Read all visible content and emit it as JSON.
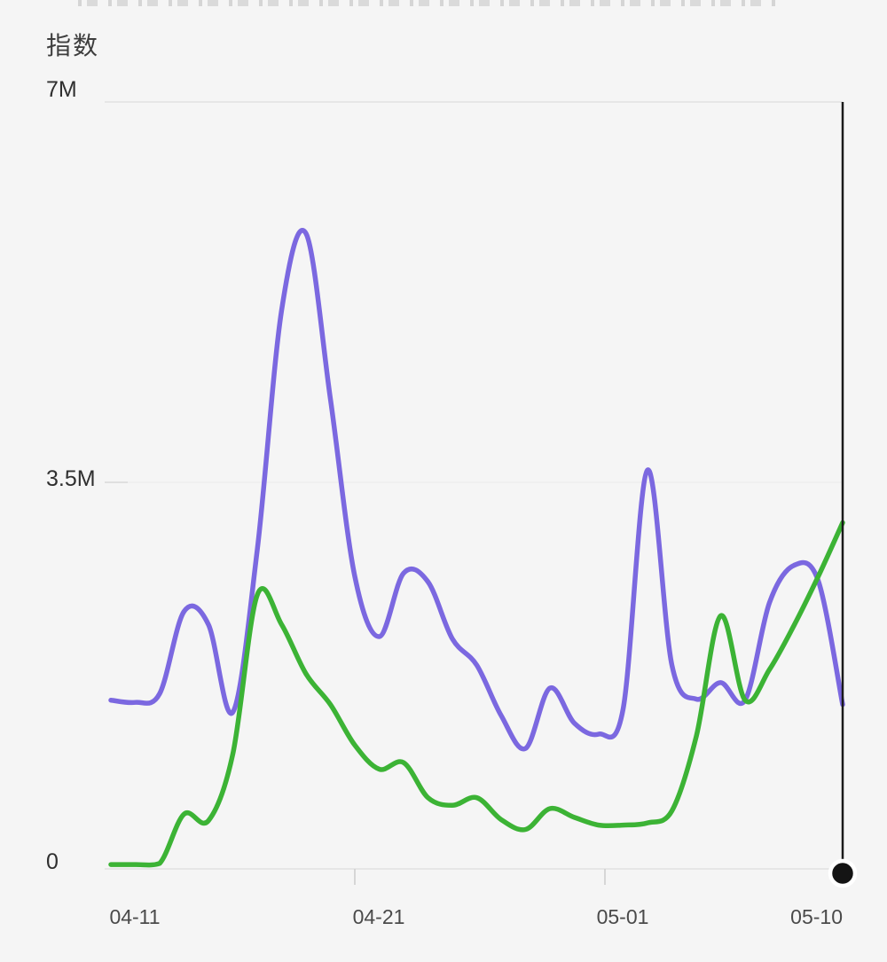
{
  "page": {
    "background": "#f5f5f5"
  },
  "chart_data": {
    "type": "line",
    "title": "指数",
    "y_ticks": [
      "7M",
      "3.5M",
      "0"
    ],
    "ylim_m": [
      0,
      7
    ],
    "grid": "horizontal-only",
    "legend": "none",
    "x_tick_labels": [
      "04-11",
      "04-21",
      "05-01",
      "05-10"
    ],
    "x_dates": [
      "04-10",
      "04-11",
      "04-12",
      "04-13",
      "04-14",
      "04-15",
      "04-16",
      "04-17",
      "04-18",
      "04-19",
      "04-20",
      "04-21",
      "04-22",
      "04-23",
      "04-24",
      "04-25",
      "04-26",
      "04-27",
      "04-28",
      "04-29",
      "04-30",
      "05-01",
      "05-02",
      "05-03",
      "05-04",
      "05-05",
      "05-06",
      "05-07",
      "05-08",
      "05-09",
      "05-10"
    ],
    "series": [
      {
        "id": "purple",
        "name": "series-purple",
        "color": "#7b68e0",
        "values_m": [
          1.54,
          1.52,
          1.6,
          2.35,
          2.23,
          1.43,
          2.91,
          5.1,
          5.8,
          4.29,
          2.67,
          2.12,
          2.7,
          2.62,
          2.1,
          1.86,
          1.4,
          1.1,
          1.65,
          1.33,
          1.23,
          1.46,
          3.64,
          1.86,
          1.55,
          1.7,
          1.54,
          2.43,
          2.77,
          2.63,
          1.5
        ]
      },
      {
        "id": "green",
        "name": "series-green",
        "color": "#3cb335",
        "values_m": [
          0.04,
          0.04,
          0.05,
          0.5,
          0.44,
          1.05,
          2.5,
          2.23,
          1.78,
          1.5,
          1.13,
          0.91,
          0.97,
          0.65,
          0.58,
          0.65,
          0.45,
          0.36,
          0.55,
          0.47,
          0.4,
          0.4,
          0.42,
          0.53,
          1.21,
          2.31,
          1.54,
          1.82,
          2.22,
          2.67,
          3.16
        ]
      }
    ],
    "cursor": {
      "index": 30,
      "date": "05-10",
      "line_color": "#1a1a1a",
      "dot_color": "#141414",
      "dot_ring_color": "#ffffff"
    }
  }
}
